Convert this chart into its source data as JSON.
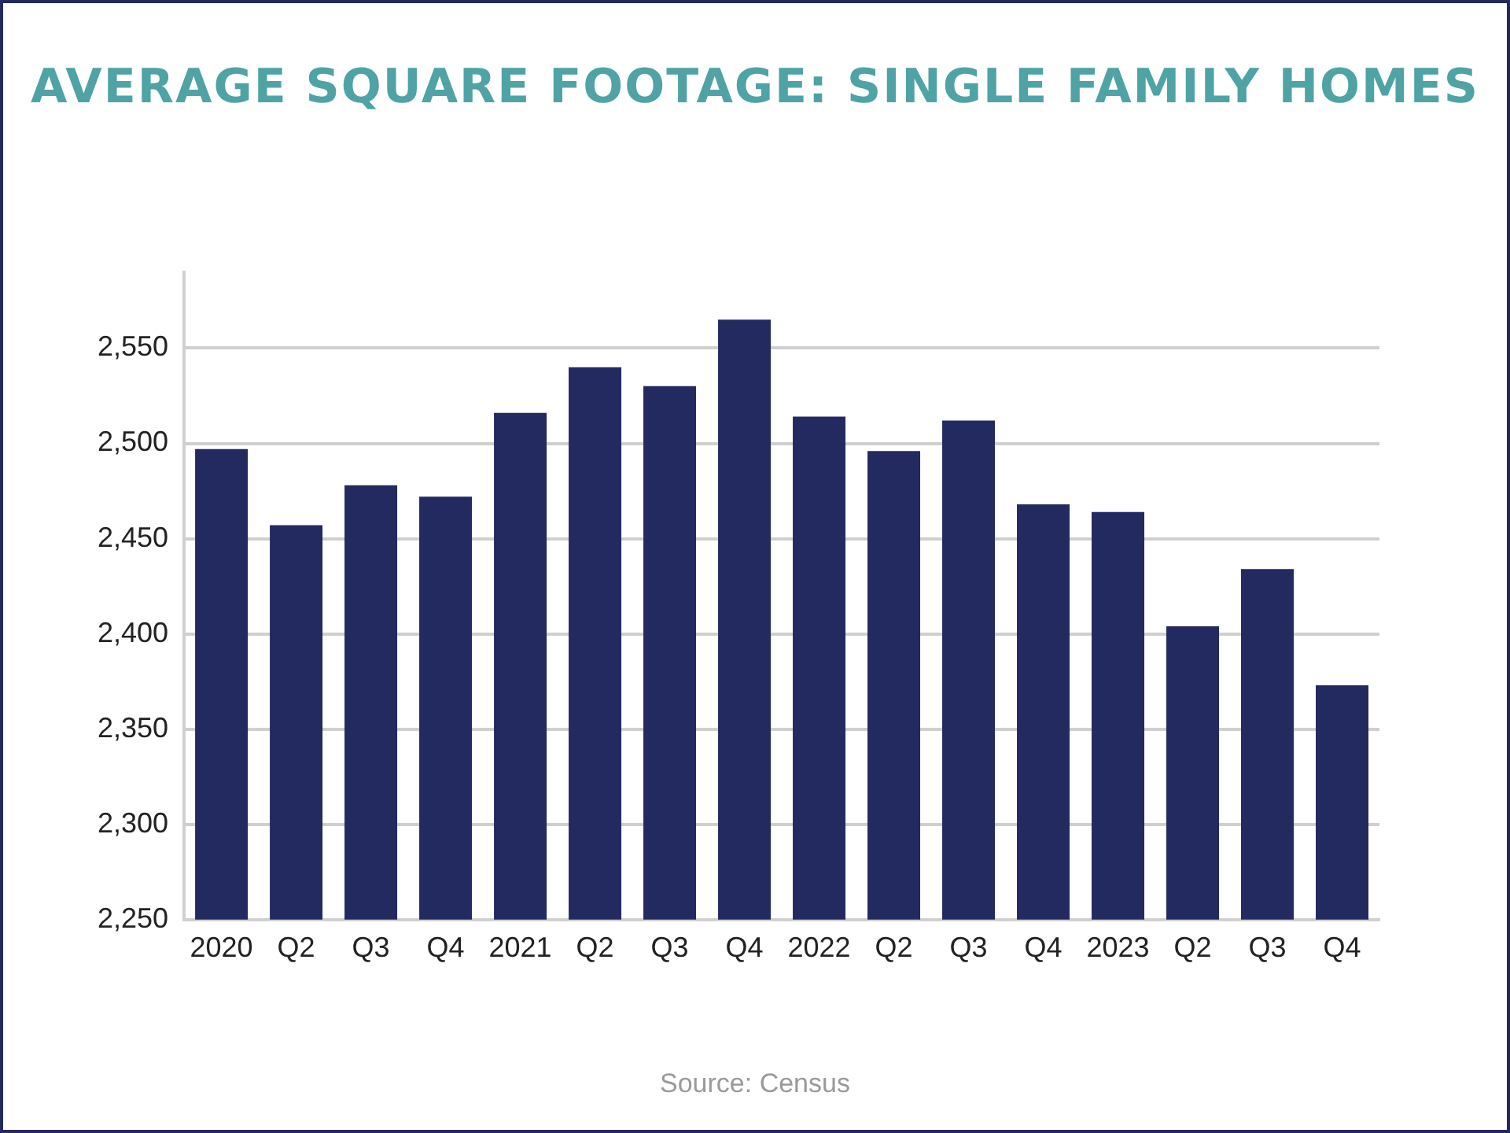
{
  "chart_data": {
    "type": "bar",
    "title": "AVERAGE SQUARE FOOTAGE: SINGLE FAMILY HOMES",
    "categories": [
      "2020",
      "Q2",
      "Q3",
      "Q4",
      "2021",
      "Q2",
      "Q3",
      "Q4",
      "2022",
      "Q2",
      "Q3",
      "Q4",
      "2023",
      "Q2",
      "Q3",
      "Q4"
    ],
    "values": [
      2497,
      2457,
      2478,
      2472,
      2516,
      2540,
      2530,
      2565,
      2514,
      2496,
      2512,
      2468,
      2464,
      2404,
      2434,
      2373
    ],
    "color": "#232a5f",
    "ylim": [
      2250,
      2590
    ],
    "yticks": [
      {
        "value": 2250,
        "label": "2,250"
      },
      {
        "value": 2300,
        "label": "2,300"
      },
      {
        "value": 2350,
        "label": "2,350"
      },
      {
        "value": 2400,
        "label": "2,400"
      },
      {
        "value": 2450,
        "label": "2,450"
      },
      {
        "value": 2500,
        "label": "2,500"
      },
      {
        "value": 2550,
        "label": "2,550"
      }
    ],
    "grid": "y",
    "annotations": [
      "Source: Census"
    ]
  }
}
